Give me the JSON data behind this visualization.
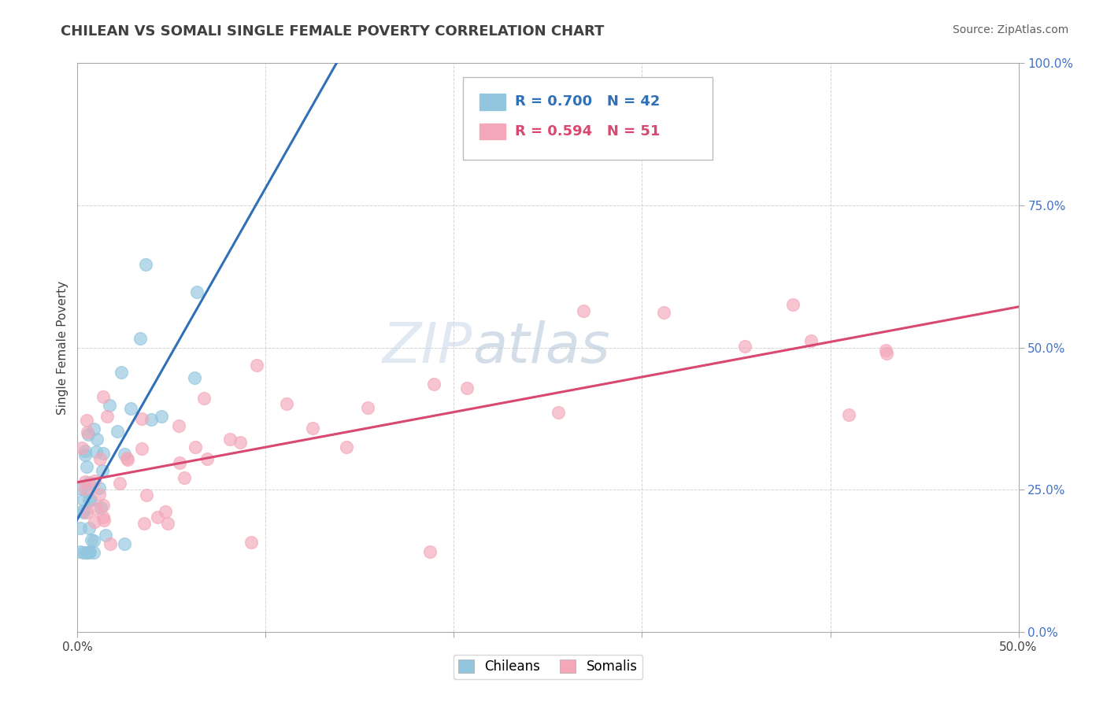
{
  "title": "CHILEAN VS SOMALI SINGLE FEMALE POVERTY CORRELATION CHART",
  "source": "Source: ZipAtlas.com",
  "ylabel": "Single Female Poverty",
  "xlim": [
    0.0,
    0.5
  ],
  "ylim": [
    0.0,
    1.0
  ],
  "chilean_R": 0.7,
  "chilean_N": 42,
  "somali_R": 0.594,
  "somali_N": 51,
  "chilean_color": "#92c5de",
  "somali_color": "#f4a7b9",
  "chilean_line_color": "#3070b8",
  "somali_line_color": "#d84870",
  "watermark_color1": "#c8d8e8",
  "watermark_color2": "#b0c4d8",
  "background_color": "#ffffff",
  "grid_color": "#c8c8c8",
  "title_color": "#404040",
  "source_color": "#606060"
}
